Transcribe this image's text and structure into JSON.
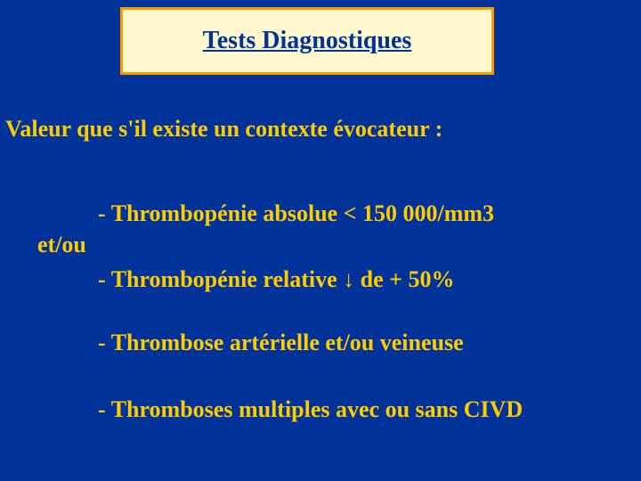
{
  "slide": {
    "background_color": "#003399",
    "title_box": {
      "background_color": "#fef8cc",
      "border_color": "#ff9900",
      "border_width": 3
    },
    "title": {
      "text": "Tests Diagnostiques",
      "color": "#003399",
      "fontsize": 28,
      "bold": true,
      "underline": true
    },
    "subtitle": {
      "text": "Valeur que s'il existe un contexte évocateur :",
      "color": "#ffcc00",
      "fontsize": 26,
      "bold": true
    },
    "et_ou": {
      "text": "et/ou",
      "color": "#ffcc00",
      "fontsize": 26,
      "bold": true
    },
    "bullets": {
      "b1": "- Thrombopénie absolue < 150 000/mm3",
      "b2_pre": "- Thrombopénie relative ",
      "b2_arrow": "↓",
      "b2_post": " de + 50%",
      "b3": "- Thrombose artérielle et/ou veineuse",
      "b4": "- Thromboses multiples avec ou sans CIVD",
      "color": "#ffcc00",
      "fontsize": 26,
      "bold": true
    }
  }
}
